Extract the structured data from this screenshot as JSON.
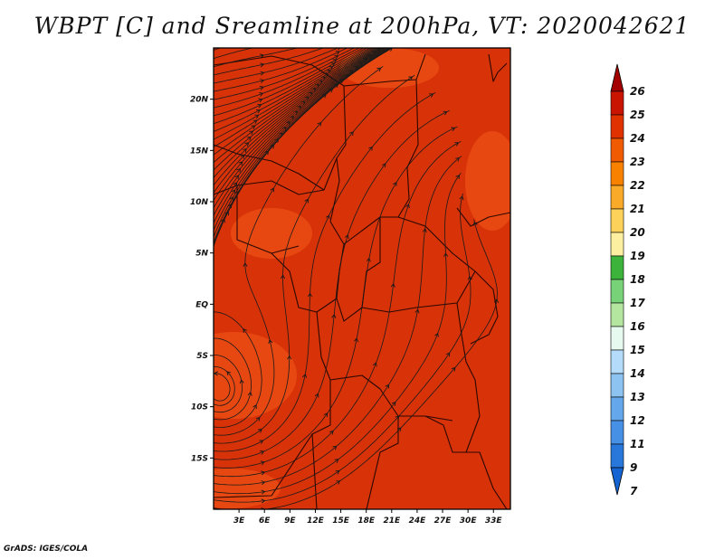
{
  "title": "WBPT [C] and Sreamline at 200hPa, VT: 2020042621",
  "credit": "GrADS: IGES/COLA",
  "map": {
    "lon_range": [
      0,
      35
    ],
    "lat_range": [
      -20,
      25
    ],
    "lon_ticks": [
      "3E",
      "6E",
      "9E",
      "12E",
      "15E",
      "18E",
      "21E",
      "24E",
      "27E",
      "30E",
      "33E"
    ],
    "lon_values": [
      3,
      6,
      9,
      12,
      15,
      18,
      21,
      24,
      27,
      30,
      33
    ],
    "lat_ticks": [
      "20N",
      "15N",
      "10N",
      "5N",
      "EQ",
      "5S",
      "10S",
      "15S"
    ],
    "lat_values": [
      20,
      15,
      10,
      5,
      0,
      -5,
      -10,
      -15
    ],
    "background_color": "#d83208",
    "warm_patch_color": "#ec5014",
    "streamline_color": "#1a1a1a"
  },
  "colorbar": {
    "labels": [
      "26",
      "25",
      "24",
      "23",
      "22",
      "21",
      "20",
      "19",
      "18",
      "17",
      "16",
      "15",
      "14",
      "13",
      "12",
      "11",
      "9",
      "7"
    ],
    "colors": [
      "#a50000",
      "#c81400",
      "#e03200",
      "#f05a00",
      "#f88200",
      "#f8aa28",
      "#fcd25a",
      "#fcf0a0",
      "#3cb43c",
      "#78d278",
      "#b4e6a0",
      "#e6faf0",
      "#b4dcfa",
      "#8cc3f0",
      "#64a8eb",
      "#4690e6",
      "#2878dc",
      "#1464d2"
    ]
  }
}
